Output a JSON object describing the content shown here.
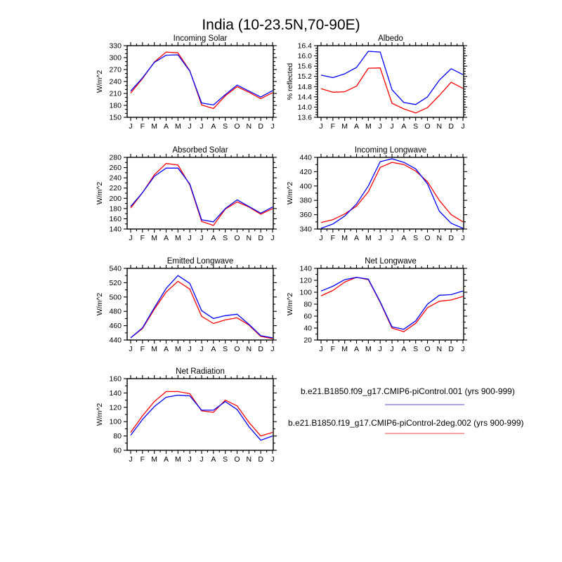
{
  "page_title": "India (10-23.5N,70-90E)",
  "months": [
    "J",
    "F",
    "M",
    "A",
    "M",
    "J",
    "J",
    "A",
    "S",
    "O",
    "N",
    "D",
    "J"
  ],
  "series_colors": {
    "blue": "#0000ff",
    "red": "#ff0000"
  },
  "legend": {
    "entries": [
      {
        "label": "b.e21.B1850.f09_g17.CMIP6-piControl.001 (yrs 900-999)",
        "color": "#a3a8ec",
        "series_color": "blue"
      },
      {
        "label": "b.e21.B1850.f19_g17.CMIP6-piControl-2deg.002 (yrs 900-999)",
        "color": "#f6a4a4",
        "series_color": "red"
      }
    ]
  },
  "chart_data": [
    {
      "type": "line",
      "title": "Incoming Solar",
      "ylabel": "W/m^2",
      "ylim": [
        150,
        330
      ],
      "ytick_step": 30,
      "yminor_step": 10,
      "decimals": 0,
      "categories": [
        "J",
        "F",
        "M",
        "A",
        "M",
        "J",
        "J",
        "A",
        "S",
        "O",
        "N",
        "D",
        "J"
      ],
      "series": [
        {
          "name": "b.e21.B1850.f09_g17.CMIP6-piControl.001",
          "color": "blue",
          "values": [
            216,
            249,
            288,
            306,
            307,
            266,
            186,
            181,
            207,
            231,
            216,
            201,
            217
          ]
        },
        {
          "name": "b.e21.B1850.f19_g17.CMIP6-piControl-2deg.002",
          "color": "red",
          "values": [
            211,
            247,
            289,
            314,
            312,
            267,
            181,
            172,
            204,
            227,
            213,
            197,
            212
          ]
        }
      ]
    },
    {
      "type": "line",
      "title": "Albedo",
      "ylabel": "% reflected",
      "ylim": [
        13.6,
        16.4
      ],
      "ytick_step": 0.4,
      "yminor_step": 0.1,
      "decimals": 1,
      "categories": [
        "J",
        "F",
        "M",
        "A",
        "M",
        "J",
        "J",
        "A",
        "S",
        "O",
        "N",
        "D",
        "J"
      ],
      "series": [
        {
          "name": "b.e21.B1850.f09_g17.CMIP6-piControl.001",
          "color": "blue",
          "values": [
            15.25,
            15.15,
            15.3,
            15.55,
            16.18,
            16.15,
            14.68,
            14.18,
            14.1,
            14.4,
            15.05,
            15.5,
            15.27
          ]
        },
        {
          "name": "b.e21.B1850.f19_g17.CMIP6-piControl-2deg.002",
          "color": "red",
          "values": [
            14.72,
            14.58,
            14.6,
            14.82,
            15.52,
            15.53,
            14.15,
            13.93,
            13.77,
            13.98,
            14.45,
            14.97,
            14.73
          ]
        }
      ]
    },
    {
      "type": "line",
      "title": "Absorbed Solar",
      "ylabel": "W/m^2",
      "ylim": [
        140,
        280
      ],
      "ytick_step": 20,
      "yminor_step": 10,
      "decimals": 0,
      "categories": [
        "J",
        "F",
        "M",
        "A",
        "M",
        "J",
        "J",
        "A",
        "S",
        "O",
        "N",
        "D",
        "J"
      ],
      "series": [
        {
          "name": "b.e21.B1850.f09_g17.CMIP6-piControl.001",
          "color": "blue",
          "values": [
            184,
            211,
            243,
            259,
            259,
            228,
            158,
            154,
            180,
            197,
            184,
            171,
            183
          ]
        },
        {
          "name": "b.e21.B1850.f19_g17.CMIP6-piControl-2deg.002",
          "color": "red",
          "values": [
            181,
            211,
            246,
            268,
            265,
            226,
            155,
            147,
            179,
            193,
            183,
            169,
            180
          ]
        }
      ]
    },
    {
      "type": "line",
      "title": "Incoming Longwave",
      "ylabel": "W/m^2",
      "ylim": [
        340,
        440
      ],
      "ytick_step": 20,
      "yminor_step": 10,
      "decimals": 0,
      "categories": [
        "J",
        "F",
        "M",
        "A",
        "M",
        "J",
        "J",
        "A",
        "S",
        "O",
        "N",
        "D",
        "J"
      ],
      "series": [
        {
          "name": "b.e21.B1850.f09_g17.CMIP6-piControl.001",
          "color": "blue",
          "values": [
            341,
            347,
            358,
            375,
            400,
            434,
            438,
            433,
            424,
            403,
            365,
            348,
            341
          ]
        },
        {
          "name": "b.e21.B1850.f19_g17.CMIP6-piControl-2deg.002",
          "color": "red",
          "values": [
            349,
            353,
            361,
            372,
            392,
            426,
            433,
            430,
            421,
            406,
            380,
            360,
            350
          ]
        }
      ]
    },
    {
      "type": "line",
      "title": "Emitted Longwave",
      "ylabel": "W/m^2",
      "ylim": [
        440,
        540
      ],
      "ytick_step": 20,
      "yminor_step": 10,
      "decimals": 0,
      "categories": [
        "J",
        "F",
        "M",
        "A",
        "M",
        "J",
        "J",
        "A",
        "S",
        "O",
        "N",
        "D",
        "J"
      ],
      "series": [
        {
          "name": "b.e21.B1850.f09_g17.CMIP6-piControl.001",
          "color": "blue",
          "values": [
            443,
            457,
            485,
            512,
            530,
            519,
            481,
            470,
            474,
            476,
            462,
            446,
            443
          ]
        },
        {
          "name": "b.e21.B1850.f19_g17.CMIP6-piControl-2deg.002",
          "color": "red",
          "values": [
            443,
            456,
            483,
            507,
            522,
            511,
            473,
            463,
            468,
            471,
            461,
            445,
            442
          ]
        }
      ]
    },
    {
      "type": "line",
      "title": "Net Longwave",
      "ylabel": "W/m^2",
      "ylim": [
        20,
        140
      ],
      "ytick_step": 20,
      "yminor_step": 10,
      "decimals": 0,
      "categories": [
        "J",
        "F",
        "M",
        "A",
        "M",
        "J",
        "J",
        "A",
        "S",
        "O",
        "N",
        "D",
        "J"
      ],
      "series": [
        {
          "name": "b.e21.B1850.f09_g17.CMIP6-piControl.001",
          "color": "blue",
          "values": [
            102,
            110,
            121,
            125,
            122,
            84,
            42,
            38,
            52,
            80,
            95,
            96,
            102
          ]
        },
        {
          "name": "b.e21.B1850.f19_g17.CMIP6-piControl-2deg.002",
          "color": "red",
          "values": [
            94,
            103,
            117,
            125,
            121,
            83,
            40,
            34,
            48,
            74,
            85,
            87,
            93
          ]
        }
      ]
    },
    {
      "type": "line",
      "title": "Net Radiation",
      "ylabel": "W/m^2",
      "ylim": [
        60,
        160
      ],
      "ytick_step": 20,
      "yminor_step": 10,
      "decimals": 0,
      "categories": [
        "J",
        "F",
        "M",
        "A",
        "M",
        "J",
        "J",
        "A",
        "S",
        "O",
        "N",
        "D",
        "J"
      ],
      "series": [
        {
          "name": "b.e21.B1850.f09_g17.CMIP6-piControl.001",
          "color": "blue",
          "values": [
            81,
            103,
            121,
            134,
            137,
            136,
            116,
            116,
            128,
            117,
            93,
            74,
            80
          ]
        },
        {
          "name": "b.e21.B1850.f19_g17.CMIP6-piControl-2deg.002",
          "color": "red",
          "values": [
            85,
            108,
            128,
            142,
            142,
            139,
            115,
            113,
            130,
            122,
            99,
            80,
            85
          ]
        }
      ]
    }
  ]
}
